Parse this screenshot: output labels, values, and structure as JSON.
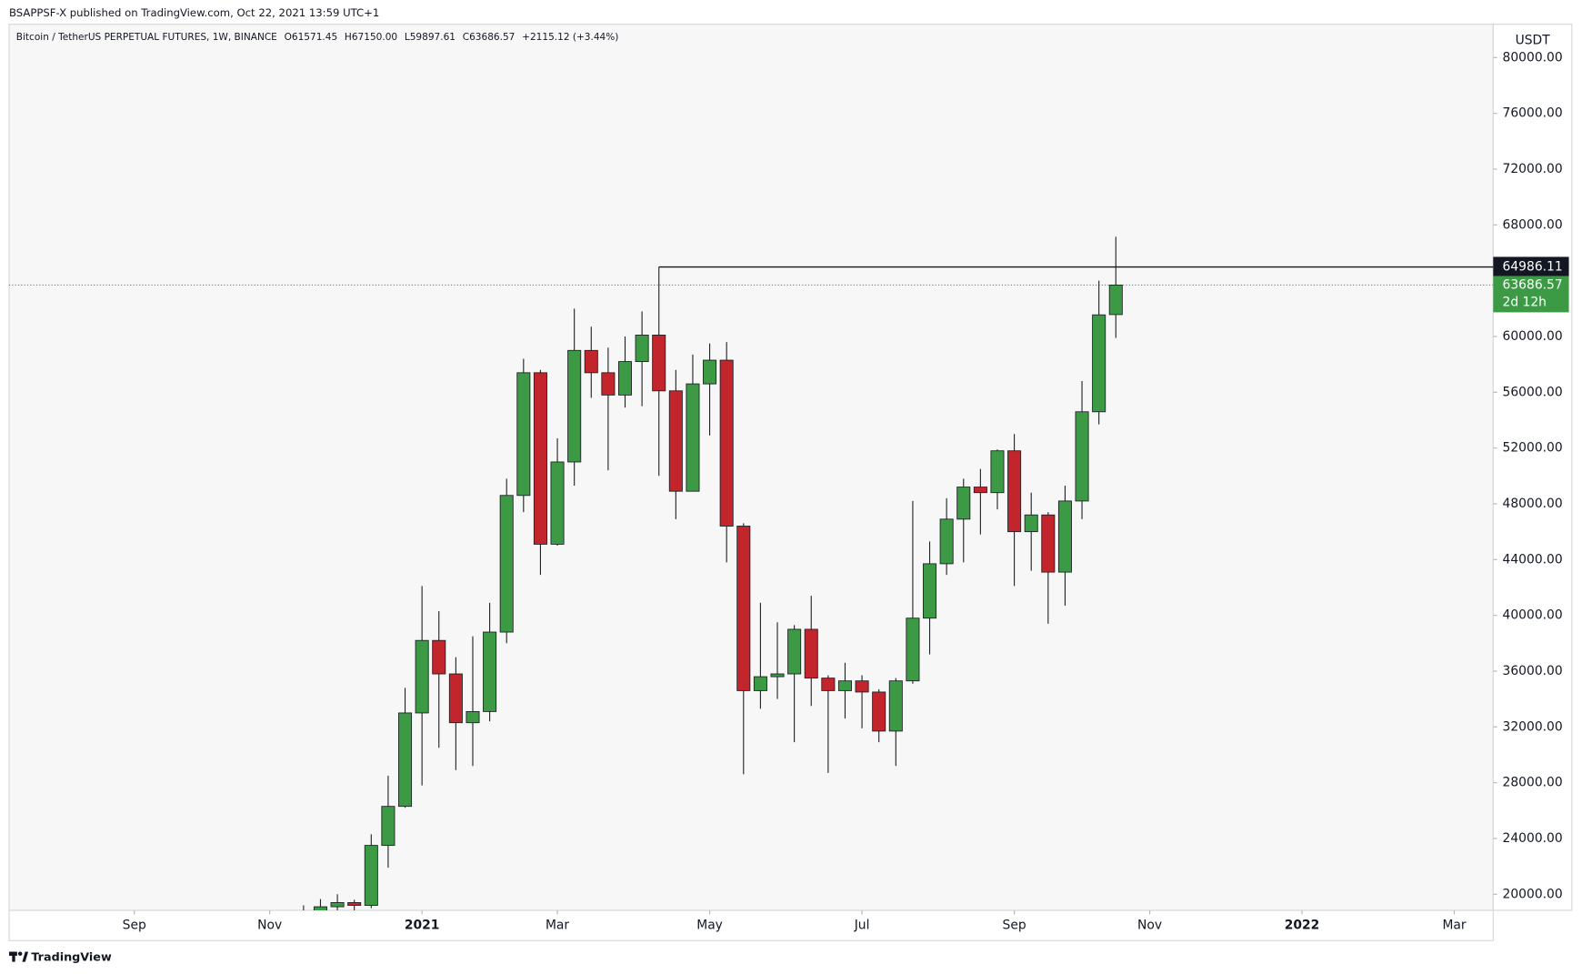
{
  "header": {
    "published": "BSAPPSF-X published on TradingView.com, Oct 22, 2021 13:59 UTC+1",
    "instrument": "Bitcoin / TetherUS PERPETUAL FUTURES, 1W, BINANCE",
    "ohlc": [
      "O61571.45",
      "H67150.00",
      "L59897.61",
      "C63686.57",
      "+2115.12 (+3.44%)"
    ]
  },
  "footer": {
    "brand": "TradingView"
  },
  "chart_data": {
    "type": "candlestick",
    "currency": "USDT",
    "x": [
      -2,
      -1,
      0,
      1,
      2,
      3,
      4,
      5,
      6,
      7,
      8,
      9,
      10,
      11,
      12,
      13,
      14,
      15,
      16,
      17,
      18,
      19,
      20,
      21,
      22,
      23,
      24,
      25,
      26,
      27,
      28,
      29,
      30,
      31,
      32,
      33,
      34,
      35,
      36,
      37,
      38,
      39,
      40,
      41,
      42,
      43,
      44,
      45,
      46
    ],
    "open": [
      18400,
      18700,
      19100,
      19400,
      19200,
      23500,
      26300,
      33000,
      38200,
      35800,
      32300,
      33100,
      38800,
      48600,
      57400,
      45100,
      51000,
      59000,
      57400,
      55800,
      58200,
      60100,
      56100,
      48900,
      56600,
      58300,
      46400,
      34600,
      35600,
      35800,
      39000,
      35500,
      34600,
      35300,
      34500,
      31700,
      35300,
      39800,
      43700,
      46900,
      49200,
      48800,
      51800,
      46000,
      47200,
      43100,
      48200,
      54600,
      61571.45
    ],
    "high": [
      19200,
      19650,
      20000,
      19600,
      24300,
      28500,
      34800,
      42100,
      40300,
      37000,
      38500,
      40900,
      49800,
      58400,
      57600,
      52700,
      62000,
      60700,
      59200,
      60000,
      61800,
      64986,
      57600,
      58700,
      59500,
      59600,
      46600,
      40900,
      39500,
      39300,
      41400,
      35700,
      36600,
      35700,
      34700,
      35500,
      48200,
      45300,
      48400,
      49800,
      50500,
      51900,
      53000,
      48800,
      47400,
      49300,
      56800,
      64000,
      67150
    ],
    "low": [
      17500,
      16200,
      18300,
      18500,
      19000,
      21900,
      26200,
      27800,
      30500,
      28900,
      29200,
      32400,
      38000,
      47400,
      42900,
      45000,
      49300,
      55600,
      50400,
      54900,
      55000,
      50000,
      46900,
      48900,
      52900,
      43800,
      28600,
      33300,
      34000,
      30900,
      33500,
      28700,
      32600,
      31900,
      30900,
      29200,
      35100,
      37200,
      42900,
      43800,
      45800,
      47600,
      42100,
      43200,
      39400,
      40700,
      46900,
      53700,
      59897.61
    ],
    "close": [
      18700,
      19100,
      19400,
      19200,
      23500,
      26300,
      33000,
      38200,
      35800,
      32300,
      33100,
      38800,
      48600,
      57400,
      45100,
      51000,
      59000,
      57400,
      55800,
      58200,
      60100,
      56100,
      48900,
      56600,
      58300,
      46400,
      34600,
      35600,
      35800,
      39000,
      35500,
      34600,
      35300,
      34500,
      31700,
      35300,
      39800,
      43700,
      46900,
      49200,
      48800,
      51800,
      46000,
      47200,
      43100,
      48200,
      54600,
      61550,
      63686.57
    ],
    "up_color": "#3c9a45",
    "down_color": "#c3252d",
    "outline_color": "#1e2226",
    "xlim": [
      -19.4,
      68.3
    ],
    "xticks": [
      {
        "value": -12,
        "label": "Sep"
      },
      {
        "value": -4,
        "label": "Nov"
      },
      {
        "value": 5,
        "label": "2021"
      },
      {
        "value": 13,
        "label": "Mar"
      },
      {
        "value": 22,
        "label": "May"
      },
      {
        "value": 31,
        "label": "Jul"
      },
      {
        "value": 40,
        "label": "Sep"
      },
      {
        "value": 48,
        "label": "Nov"
      },
      {
        "value": 57,
        "label": "2022"
      },
      {
        "value": 66,
        "label": "Mar"
      }
    ],
    "ylim": [
      18842,
      82390
    ],
    "yticks": [
      {
        "value": 20000,
        "label": "20000.00"
      },
      {
        "value": 24000,
        "label": "24000.00"
      },
      {
        "value": 28000,
        "label": "28000.00"
      },
      {
        "value": 32000,
        "label": "32000.00"
      },
      {
        "value": 36000,
        "label": "36000.00"
      },
      {
        "value": 40000,
        "label": "40000.00"
      },
      {
        "value": 44000,
        "label": "44000.00"
      },
      {
        "value": 48000,
        "label": "48000.00"
      },
      {
        "value": 52000,
        "label": "52000.00"
      },
      {
        "value": 56000,
        "label": "56000.00"
      },
      {
        "value": 60000,
        "label": "60000.00"
      },
      {
        "value": 64000,
        "label": "64000.00"
      },
      {
        "value": 68000,
        "label": "68000.00"
      },
      {
        "value": 72000,
        "label": "72000.00"
      },
      {
        "value": 76000,
        "label": "76000.00"
      },
      {
        "value": 80000,
        "label": "80000.00"
      }
    ],
    "hline": {
      "value": 64986.11,
      "label": "64986.11",
      "start_x": 19,
      "color": "#131722"
    },
    "last_price": {
      "value": 63686.57,
      "label": "63686.57",
      "countdown": "2d 12h",
      "color": "#3c9a45"
    },
    "grid": false
  }
}
